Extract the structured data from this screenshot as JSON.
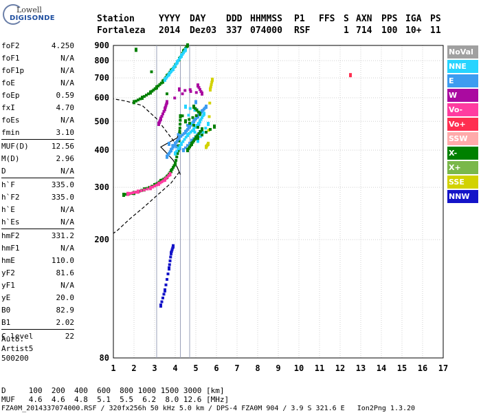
{
  "logo": {
    "line1": "Lowell",
    "line2": "DIGISONDE"
  },
  "header": {
    "labels": [
      "Station",
      "YYYY",
      "DAY",
      "DDD",
      "HHMMSS",
      "P1",
      "FFS",
      "S",
      "AXN",
      "PPS",
      "IGA",
      "PS"
    ],
    "values": [
      "Fortaleza",
      "2014",
      "Dez03",
      "337",
      "074000",
      "RSF",
      "",
      "1",
      "714",
      "100",
      "10+",
      "11"
    ]
  },
  "params": [
    {
      "name": "foF2",
      "value": "4.250"
    },
    {
      "name": "foF1",
      "value": "N/A"
    },
    {
      "name": "foF1p",
      "value": "N/A"
    },
    {
      "name": "foE",
      "value": "N/A"
    },
    {
      "name": "foEp",
      "value": "0.59"
    },
    {
      "name": "fxI",
      "value": "4.70"
    },
    {
      "name": "foEs",
      "value": "N/A"
    },
    {
      "name": "fmin",
      "value": "3.10"
    },
    {
      "sep": true
    },
    {
      "name": "MUF(D)",
      "value": "12.56"
    },
    {
      "name": "M(D)",
      "value": "2.96"
    },
    {
      "name": "D",
      "value": "N/A"
    },
    {
      "sep": true
    },
    {
      "name": "h`F",
      "value": "335.0"
    },
    {
      "name": "h`F2",
      "value": "335.0"
    },
    {
      "name": "h`E",
      "value": "N/A"
    },
    {
      "name": "h`Es",
      "value": "N/A"
    },
    {
      "sep": true
    },
    {
      "name": "hmF2",
      "value": "331.2"
    },
    {
      "name": "hmF1",
      "value": "N/A"
    },
    {
      "name": "hmE",
      "value": "110.0"
    },
    {
      "name": "yF2",
      "value": "81.6"
    },
    {
      "name": "yF1",
      "value": "N/A"
    },
    {
      "name": "yE",
      "value": "20.0"
    },
    {
      "name": "B0",
      "value": "82.9"
    },
    {
      "name": "B1",
      "value": "2.02"
    },
    {
      "sep": true
    },
    {
      "name": "C-level",
      "value": "22"
    }
  ],
  "auto": {
    "line1": "Auto:",
    "line2": "Artist5",
    "line3": "500200"
  },
  "footer": {
    "d_row": "D     100  200  400  600  800 1000 1500 3000 [km]",
    "muf_row": "MUF   4.6  4.6  4.8  5.1  5.5  6.2  8.0 12.6 [MHz]",
    "info": "FZA0M_2014337074000.RSF / 320fx256h 50 kHz 5.0 km / DPS-4 FZA0M 904 / 3.9 S 321.6 E   Ion2Png 1.3.20"
  },
  "legend": [
    {
      "label": "NoVal",
      "color": "#a0a0a0"
    },
    {
      "label": "NNE",
      "color": "#26d4ff"
    },
    {
      "label": "E",
      "color": "#3d9cf0"
    },
    {
      "label": "W",
      "color": "#aa0aa0"
    },
    {
      "label": "Vo-",
      "color": "#ff3ca0"
    },
    {
      "label": "Vo+",
      "color": "#ff2e50"
    },
    {
      "label": "SSW",
      "color": "#ffaaaa"
    },
    {
      "label": "X-",
      "color": "#008000"
    },
    {
      "label": "X+",
      "color": "#7ab84a"
    },
    {
      "label": "SSE",
      "color": "#d2d200"
    },
    {
      "label": "NNW",
      "color": "#1414c8"
    }
  ],
  "chart_data": {
    "type": "scatter",
    "xlim": [
      1,
      17
    ],
    "ylim": [
      80,
      900
    ],
    "y_scale": "log",
    "xticks": [
      1,
      2,
      3,
      4,
      5,
      6,
      7,
      8,
      9,
      10,
      11,
      12,
      13,
      14,
      15,
      16,
      17
    ],
    "yticks": [
      80,
      200,
      300,
      400,
      500,
      600,
      700,
      800,
      900
    ],
    "grid": true,
    "legend_position": "right",
    "fixed_frequency_lines": [
      3.1,
      4.25,
      4.7
    ],
    "profile_solid": [
      [
        4.25,
        331
      ],
      [
        4.1,
        350
      ],
      [
        3.9,
        370
      ],
      [
        3.6,
        390
      ],
      [
        3.3,
        410
      ],
      [
        4.1,
        440
      ],
      [
        4.2,
        470
      ]
    ],
    "profile_lower": [
      [
        4.2,
        338
      ],
      [
        3.8,
        310
      ],
      [
        3.2,
        285
      ],
      [
        2.5,
        258
      ],
      [
        1.8,
        235
      ],
      [
        1.2,
        215
      ],
      [
        1,
        210
      ]
    ],
    "profile_dashed": [
      [
        4.25,
        400
      ],
      [
        3.7,
        450
      ],
      [
        3.1,
        510
      ],
      [
        2.4,
        565
      ],
      [
        1.6,
        585
      ],
      [
        1,
        595
      ]
    ],
    "traces": [
      {
        "name": "F2 o-trace",
        "color": "#008000",
        "points": [
          [
            1.5,
            283
          ],
          [
            2,
            287
          ],
          [
            2.5,
            295
          ],
          [
            3,
            305
          ],
          [
            3.3,
            315
          ],
          [
            3.6,
            325
          ],
          [
            3.8,
            340
          ],
          [
            4,
            360
          ],
          [
            4.15,
            400
          ],
          [
            4.22,
            460
          ],
          [
            4.25,
            520
          ]
        ]
      },
      {
        "name": "F2 o-trace (Vo-)",
        "color": "#ff3ca0",
        "points": [
          [
            1.7,
            285
          ],
          [
            2.2,
            290
          ],
          [
            2.8,
            298
          ],
          [
            3.2,
            308
          ],
          [
            3.5,
            318
          ],
          [
            3.75,
            332
          ]
        ]
      },
      {
        "name": "F2 x-trace",
        "color": "#008000",
        "points": [
          [
            2,
            580
          ],
          [
            2.4,
            600
          ],
          [
            2.8,
            625
          ],
          [
            3.1,
            650
          ],
          [
            3.4,
            680
          ],
          [
            3.6,
            710
          ],
          [
            3.8,
            740
          ],
          [
            4,
            770
          ],
          [
            4.2,
            810
          ],
          [
            4.4,
            860
          ],
          [
            4.6,
            900
          ]
        ]
      },
      {
        "name": "F2 x-trace (NNE)",
        "color": "#26d4ff",
        "points": [
          [
            3.5,
            690
          ],
          [
            3.7,
            720
          ],
          [
            3.9,
            750
          ],
          [
            4.1,
            790
          ],
          [
            4.3,
            830
          ],
          [
            4.5,
            870
          ]
        ]
      },
      {
        "name": "spread E",
        "color": "#3d9cf0",
        "points": [
          [
            3.6,
            380
          ],
          [
            3.8,
            400
          ],
          [
            4,
            420
          ],
          [
            4.2,
            440
          ],
          [
            4.5,
            460
          ],
          [
            4.7,
            480
          ],
          [
            4.9,
            500
          ],
          [
            5.1,
            520
          ],
          [
            5.3,
            540
          ],
          [
            5.5,
            560
          ],
          [
            3.7,
            420
          ],
          [
            4.4,
            400
          ],
          [
            4.8,
            430
          ],
          [
            5.2,
            460
          ],
          [
            5,
            580
          ]
        ]
      },
      {
        "name": "spread NNE",
        "color": "#26d4ff",
        "points": [
          [
            4,
            390
          ],
          [
            4.3,
            420
          ],
          [
            4.6,
            450
          ],
          [
            4.9,
            470
          ],
          [
            5.2,
            500
          ],
          [
            5.4,
            530
          ],
          [
            4.5,
            560
          ],
          [
            5.1,
            430
          ],
          [
            5.6,
            490
          ]
        ]
      },
      {
        "name": "spread W",
        "color": "#aa0aa0",
        "points": [
          [
            3.2,
            490
          ],
          [
            3.3,
            510
          ],
          [
            3.5,
            550
          ],
          [
            3.6,
            580
          ],
          [
            5.1,
            660
          ],
          [
            5.3,
            620
          ],
          [
            4.2,
            640
          ]
        ]
      },
      {
        "name": "spread X-",
        "color": "#008000",
        "points": [
          [
            4.6,
            400
          ],
          [
            4.8,
            420
          ],
          [
            5,
            440
          ],
          [
            5.3,
            470
          ],
          [
            4.5,
            500
          ],
          [
            5.2,
            530
          ],
          [
            4.9,
            560
          ]
        ]
      },
      {
        "name": "SSE",
        "color": "#d2d200",
        "points": [
          [
            5.5,
            410
          ],
          [
            5.6,
            420
          ],
          [
            5.7,
            640
          ],
          [
            5.8,
            690
          ]
        ]
      },
      {
        "name": "NNW low",
        "color": "#1414c8",
        "points": [
          [
            3.3,
            120
          ],
          [
            3.5,
            135
          ],
          [
            3.7,
            160
          ],
          [
            3.8,
            180
          ],
          [
            3.9,
            190
          ]
        ]
      },
      {
        "name": "misc",
        "color": "#ff2e50",
        "points": [
          [
            12.5,
            715
          ]
        ]
      },
      {
        "name": "misc2",
        "color": "#008000",
        "points": [
          [
            2.1,
            870
          ],
          [
            5.1,
            440
          ],
          [
            5.9,
            480
          ]
        ]
      }
    ]
  }
}
